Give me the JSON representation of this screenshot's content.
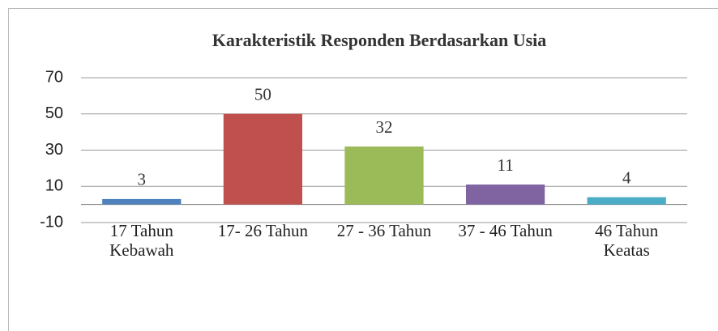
{
  "chart_data": {
    "type": "bar",
    "title": "Karakteristik Responden Berdasarkan Usia",
    "categories": [
      "17 Tahun Kebawah",
      "17- 26 Tahun",
      "27 - 36 Tahun",
      "37 - 46 Tahun",
      "46 Tahun Keatas"
    ],
    "values": [
      3,
      50,
      32,
      11,
      4
    ],
    "colors": [
      "#4f81bd",
      "#c0504d",
      "#9bbb59",
      "#8064a2",
      "#4bacc6"
    ],
    "ylim": [
      -10,
      70
    ],
    "yticks": [
      -10,
      10,
      30,
      50,
      70
    ],
    "grid": true
  }
}
